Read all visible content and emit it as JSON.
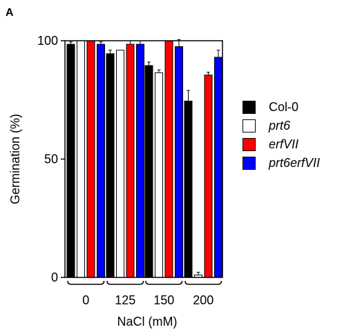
{
  "panel_label": "A",
  "chart_data": {
    "type": "bar",
    "categories": [
      "0",
      "125",
      "150",
      "200"
    ],
    "series": [
      {
        "name": "Col-0",
        "color": "#000000",
        "italic": false,
        "values": [
          98.5,
          94.5,
          89.5,
          74.5
        ],
        "errors": [
          1.0,
          1.5,
          1.5,
          4.5
        ]
      },
      {
        "name": "prt6",
        "color": "#ffffff",
        "italic": true,
        "values": [
          100,
          96,
          86.5,
          1.0
        ],
        "errors": [
          0,
          0,
          1.2,
          1.2
        ]
      },
      {
        "name": "erfVII",
        "color": "#ff0000",
        "italic": true,
        "values": [
          100,
          98.5,
          100,
          85.5
        ],
        "errors": [
          0,
          1.5,
          0,
          1.2
        ]
      },
      {
        "name": "prt6erfVII",
        "color": "#0000ff",
        "italic": true,
        "values": [
          98.5,
          98.5,
          97.5,
          93.0
        ],
        "errors": [
          1.0,
          1.5,
          3.0,
          3.0
        ]
      }
    ],
    "xlabel": "NaCl (mM)",
    "ylabel": "Germination (%)",
    "ylim": [
      0,
      100
    ],
    "yticks": [
      0,
      50,
      100
    ],
    "grid": false,
    "legend_position": "right"
  }
}
